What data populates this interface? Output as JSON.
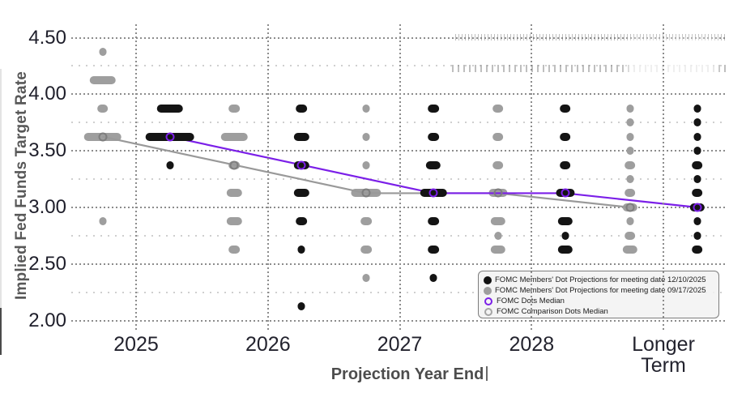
{
  "chart_data": {
    "type": "scatter",
    "title": "",
    "xlabel": "Projection Year End",
    "ylabel": "Implied Fed Funds Target Rate",
    "x_categories": [
      "2025",
      "2026",
      "2027",
      "2028",
      "Longer Term"
    ],
    "y_major_ticks": [
      {
        "label": "4.50",
        "value": 4.5
      },
      {
        "label": "4.00",
        "value": 4.0
      },
      {
        "label": "3.50",
        "value": 3.5
      },
      {
        "label": "3.00",
        "value": 3.0
      },
      {
        "label": "2.50",
        "value": 2.5
      },
      {
        "label": "2.00",
        "value": 2.0
      }
    ],
    "y_minor_ticks": [
      4.25,
      3.75,
      3.25,
      2.75,
      2.25
    ],
    "ylim": [
      2.0,
      4.5
    ],
    "grid": true,
    "legend_position": "bottom-right",
    "colors": {
      "black_dots": "#141414",
      "gray_dots": "#9e9e9e",
      "median_purple": "#7b1fe8",
      "median_gray": "#999999",
      "grid_major": "#8c8c8c",
      "grid_minor": "#cfcfcf"
    },
    "series": [
      {
        "label": "FOMC Members' Dot Projections for meeting date 09/17/2025",
        "meeting_date": "09/17/2025",
        "color": "#9e9e9e",
        "side": "left",
        "columns": [
          {
            "year": "2025",
            "dots": [
              [
                4.375,
                1
              ],
              [
                4.125,
                6
              ],
              [
                3.875,
                2
              ],
              [
                3.625,
                9
              ],
              [
                2.875,
                1
              ]
            ]
          },
          {
            "year": "2026",
            "dots": [
              [
                3.875,
                2
              ],
              [
                3.625,
                6
              ],
              [
                3.375,
                2
              ],
              [
                3.125,
                3
              ],
              [
                2.875,
                3
              ],
              [
                2.625,
                2
              ]
            ]
          },
          {
            "year": "2027",
            "dots": [
              [
                3.875,
                1
              ],
              [
                3.625,
                1
              ],
              [
                3.375,
                1
              ],
              [
                3.125,
                7
              ],
              [
                2.875,
                2
              ],
              [
                2.625,
                2
              ],
              [
                2.375,
                1
              ]
            ]
          },
          {
            "year": "2028",
            "dots": [
              [
                3.875,
                2
              ],
              [
                3.625,
                2
              ],
              [
                3.375,
                2
              ],
              [
                3.125,
                4
              ],
              [
                2.875,
                3
              ],
              [
                2.75,
                1
              ],
              [
                2.625,
                3
              ]
            ]
          },
          {
            "year": "Longer Term",
            "dots": [
              [
                3.875,
                1
              ],
              [
                3.75,
                1
              ],
              [
                3.625,
                1
              ],
              [
                3.5,
                1
              ],
              [
                3.375,
                2
              ],
              [
                3.25,
                1
              ],
              [
                3.125,
                2
              ],
              [
                3.0,
                3
              ],
              [
                2.875,
                1
              ],
              [
                2.75,
                2
              ],
              [
                2.625,
                3
              ]
            ]
          }
        ],
        "median": {
          "label": "FOMC Comparison Dots Median",
          "color": "#999999",
          "ring_color": "#7e7e7e",
          "values": [
            3.625,
            3.375,
            3.125,
            3.125,
            3.0
          ]
        }
      },
      {
        "label": "FOMC Members' Dot Projections for meeting date 12/10/2025",
        "meeting_date": "12/10/2025",
        "color": "#141414",
        "side": "right",
        "columns": [
          {
            "year": "2025",
            "dots": [
              [
                3.875,
                6
              ],
              [
                3.625,
                12
              ],
              [
                3.375,
                1
              ]
            ]
          },
          {
            "year": "2026",
            "dots": [
              [
                3.875,
                2
              ],
              [
                3.625,
                3
              ],
              [
                3.375,
                3
              ],
              [
                3.125,
                3
              ],
              [
                2.875,
                2
              ],
              [
                2.625,
                1
              ],
              [
                2.125,
                1
              ]
            ]
          },
          {
            "year": "2027",
            "dots": [
              [
                3.875,
                2
              ],
              [
                3.625,
                2
              ],
              [
                3.375,
                3
              ],
              [
                3.125,
                6
              ],
              [
                2.875,
                2
              ],
              [
                2.625,
                2
              ],
              [
                2.375,
                1
              ]
            ]
          },
          {
            "year": "2028",
            "dots": [
              [
                3.875,
                2
              ],
              [
                3.625,
                2
              ],
              [
                3.375,
                2
              ],
              [
                3.125,
                4
              ],
              [
                2.875,
                3
              ],
              [
                2.75,
                1
              ],
              [
                2.625,
                3
              ]
            ]
          },
          {
            "year": "Longer Term",
            "dots": [
              [
                3.875,
                1
              ],
              [
                3.75,
                1
              ],
              [
                3.625,
                1
              ],
              [
                3.5,
                1
              ],
              [
                3.375,
                2
              ],
              [
                3.25,
                1
              ],
              [
                3.125,
                2
              ],
              [
                3.0,
                3
              ],
              [
                2.875,
                1
              ],
              [
                2.75,
                1
              ],
              [
                2.625,
                2
              ]
            ]
          }
        ],
        "median": {
          "label": "FOMC Dots Median",
          "color": "#7b1fe8",
          "ring_color": "#7b1fe8",
          "values": [
            3.625,
            3.375,
            3.125,
            3.125,
            3.0
          ]
        }
      }
    ],
    "legend": {
      "items": [
        {
          "marker": "filled-black",
          "label": "FOMC Members' Dot Projections for meeting date 12/10/2025"
        },
        {
          "marker": "filled-gray",
          "label": "FOMC Members' Dot Projections for meeting date 09/17/2025"
        },
        {
          "marker": "open-purple",
          "label": "FOMC Dots Median"
        },
        {
          "marker": "open-gray",
          "label": "FOMC Comparison Dots Median"
        }
      ]
    }
  }
}
